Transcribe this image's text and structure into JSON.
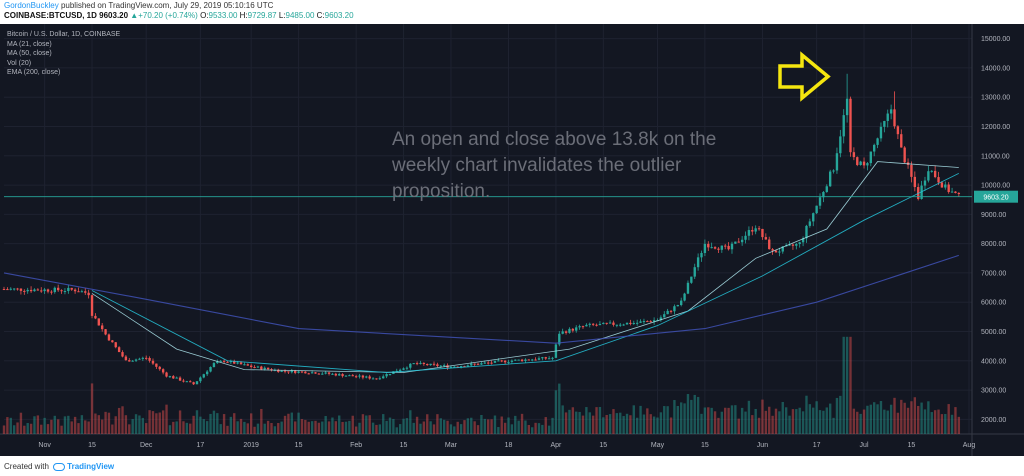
{
  "header": {
    "author": "GordonBuckley",
    "published": "published on TradingView.com, July 29, 2019 05:10:16 UTC",
    "symbol": "COINBASE:BTCUSD, 1D",
    "last": "9603.20",
    "change": "+70.20 (+0.74%)",
    "ohlc_open": "9533.00",
    "ohlc_high": "9729.87",
    "ohlc_low": "9485.00",
    "ohlc_close": "9603.20",
    "o_label": "O:",
    "h_label": "H:",
    "l_label": "L:",
    "c_label": "C:"
  },
  "legend": {
    "title": "Bitcoin / U.S. Dollar, 1D, COINBASE",
    "ma21": "MA (21, close)",
    "ma50": "MA (50, close)",
    "vol": "Vol (20)",
    "ema200": "EMA (200, close)"
  },
  "annotation_text": "An open and close above 13.8k on the weekly chart invalidates the outlier proposition.",
  "price_badge": "9603.20",
  "footer": {
    "created_with": "Created with",
    "brand": "TradingView"
  },
  "colors": {
    "up": "#26a69a",
    "down": "#ef5350",
    "ma21": "#b2ebf2",
    "ma50": "#26c6da",
    "ema200": "#3f51b5",
    "arrow": "#f5e60f",
    "last_line": "#26a69a"
  },
  "chart_data": {
    "type": "candlestick",
    "title": "Bitcoin / U.S. Dollar, 1D, COINBASE",
    "ylim": [
      1500,
      15500
    ],
    "y_ticks": [
      2000,
      3000,
      4000,
      5000,
      6000,
      7000,
      8000,
      9000,
      10000,
      11000,
      12000,
      13000,
      14000,
      15000
    ],
    "y_tick_labels": [
      "2000.00",
      "3000.00",
      "4000.00",
      "5000.00",
      "6000.00",
      "7000.00",
      "8000.00",
      "9000.00",
      "10000.00",
      "11000.00",
      "12000.00",
      "13000.00",
      "14000.00",
      "15000.00"
    ],
    "x_ticks": [
      "Nov",
      "15",
      "Dec",
      "17",
      "2019",
      "15",
      "Feb",
      "15",
      "Mar",
      "18",
      "Apr",
      "15",
      "May",
      "15",
      "Jun",
      "17",
      "Jul",
      "15",
      "Aug"
    ],
    "x_tick_dates": [
      "2018-11-01",
      "2018-11-15",
      "2018-12-01",
      "2018-12-17",
      "2019-01-01",
      "2019-01-15",
      "2019-02-01",
      "2019-02-15",
      "2019-03-01",
      "2019-03-18",
      "2019-04-01",
      "2019-04-15",
      "2019-05-01",
      "2019-05-15",
      "2019-06-01",
      "2019-06-17",
      "2019-07-01",
      "2019-07-15",
      "2019-08-01"
    ],
    "price_path": [
      [
        "2018-10-20",
        6450
      ],
      [
        "2018-11-01",
        6420
      ],
      [
        "2018-11-10",
        6420
      ],
      [
        "2018-11-14",
        6300
      ],
      [
        "2018-11-15",
        5600
      ],
      [
        "2018-11-19",
        4900
      ],
      [
        "2018-11-25",
        4000
      ],
      [
        "2018-12-01",
        4100
      ],
      [
        "2018-12-07",
        3500
      ],
      [
        "2018-12-15",
        3200
      ],
      [
        "2018-12-21",
        3900
      ],
      [
        "2018-12-24",
        4000
      ],
      [
        "2019-01-01",
        3800
      ],
      [
        "2019-01-10",
        3650
      ],
      [
        "2019-01-20",
        3600
      ],
      [
        "2019-02-07",
        3400
      ],
      [
        "2019-02-18",
        3900
      ],
      [
        "2019-03-01",
        3800
      ],
      [
        "2019-03-18",
        4000
      ],
      [
        "2019-03-31",
        4100
      ],
      [
        "2019-04-02",
        4950
      ],
      [
        "2019-04-10",
        5200
      ],
      [
        "2019-04-25",
        5300
      ],
      [
        "2019-05-01",
        5400
      ],
      [
        "2019-05-08",
        6000
      ],
      [
        "2019-05-12",
        7200
      ],
      [
        "2019-05-15",
        8000
      ],
      [
        "2019-05-22",
        7800
      ],
      [
        "2019-05-30",
        8600
      ],
      [
        "2019-06-04",
        7700
      ],
      [
        "2019-06-12",
        8000
      ],
      [
        "2019-06-17",
        9300
      ],
      [
        "2019-06-22",
        10600
      ],
      [
        "2019-06-26",
        12900
      ],
      [
        "2019-06-27",
        11000
      ],
      [
        "2019-07-01",
        10600
      ],
      [
        "2019-07-09",
        12600
      ],
      [
        "2019-07-12",
        11200
      ],
      [
        "2019-07-17",
        9600
      ],
      [
        "2019-07-20",
        10600
      ],
      [
        "2019-07-25",
        9900
      ],
      [
        "2019-07-29",
        9603
      ]
    ],
    "notable_highs": [
      [
        "2019-06-26",
        13800
      ],
      [
        "2019-07-10",
        13200
      ]
    ],
    "moving_averages": [
      {
        "name": "MA (21, close)",
        "points": [
          [
            "2018-11-15",
            6300
          ],
          [
            "2018-12-10",
            4400
          ],
          [
            "2018-12-30",
            3700
          ],
          [
            "2019-02-15",
            3600
          ],
          [
            "2019-04-05",
            4400
          ],
          [
            "2019-05-10",
            5700
          ],
          [
            "2019-05-30",
            7500
          ],
          [
            "2019-06-20",
            8500
          ],
          [
            "2019-07-05",
            10800
          ],
          [
            "2019-07-29",
            10600
          ]
        ]
      },
      {
        "name": "MA (50, close)",
        "points": [
          [
            "2018-11-15",
            6400
          ],
          [
            "2018-12-25",
            4000
          ],
          [
            "2019-02-10",
            3600
          ],
          [
            "2019-04-01",
            4000
          ],
          [
            "2019-05-01",
            5200
          ],
          [
            "2019-06-01",
            6900
          ],
          [
            "2019-07-01",
            8800
          ],
          [
            "2019-07-29",
            10400
          ]
        ]
      },
      {
        "name": "EMA (200, close)",
        "points": [
          [
            "2018-10-20",
            7000
          ],
          [
            "2018-12-01",
            6100
          ],
          [
            "2019-01-15",
            5100
          ],
          [
            "2019-04-01",
            4600
          ],
          [
            "2019-05-15",
            5100
          ],
          [
            "2019-06-17",
            6000
          ],
          [
            "2019-07-29",
            7600
          ]
        ]
      }
    ]
  }
}
